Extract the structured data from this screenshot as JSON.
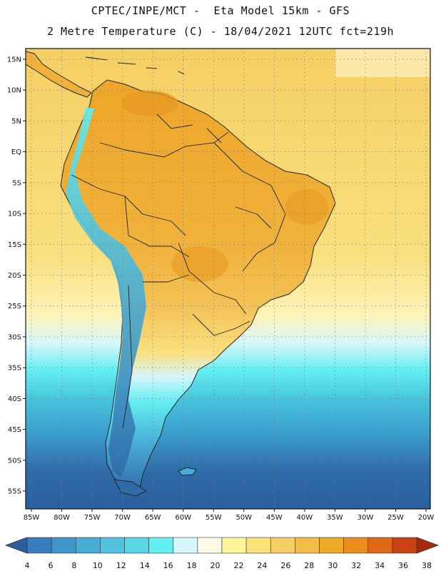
{
  "header": {
    "line1": "CPTEC/INPE/MCT -  Eta Model 15km - GFS",
    "line2": "2 Metre Temperature (C) - 18/04/2021 12UTC fct=219h"
  },
  "map": {
    "lat_labels": [
      "15N",
      "10N",
      "5N",
      "EQ",
      "5S",
      "10S",
      "15S",
      "20S",
      "25S",
      "30S",
      "35S",
      "40S",
      "45S",
      "50S",
      "55S"
    ],
    "lon_labels": [
      "85W",
      "80W",
      "75W",
      "70W",
      "65W",
      "60W",
      "55W",
      "50W",
      "45W",
      "40W",
      "35W",
      "30W",
      "25W",
      "20W"
    ],
    "lat_range": [
      15,
      -55
    ],
    "lon_range": [
      -85,
      -20
    ],
    "gridlines": "dotted"
  },
  "colorbar": {
    "labels": [
      "4",
      "6",
      "8",
      "10",
      "12",
      "14",
      "16",
      "18",
      "20",
      "22",
      "24",
      "26",
      "28",
      "30",
      "32",
      "34",
      "36",
      "38"
    ],
    "colors": [
      "#2a5f9e",
      "#3a7dbf",
      "#3f96c9",
      "#48aed6",
      "#52c1de",
      "#5ad6e6",
      "#62eef2",
      "#d6f7fb",
      "#fffbe8",
      "#fff69a",
      "#fbe27a",
      "#f5cf63",
      "#f1bd47",
      "#eeab27",
      "#ea8c1f",
      "#e06618",
      "#c94312",
      "#a72a0c"
    ]
  },
  "colors": {
    "ocean_cold": "#2f6aa8",
    "ocean_cool": "#4ab8d8",
    "ocean_mid": "#9be6f3",
    "tropics_warm": "#f5cf63",
    "land_hot": "#eeab27",
    "andes_cold": "#3f96c9",
    "border": "#222222"
  }
}
